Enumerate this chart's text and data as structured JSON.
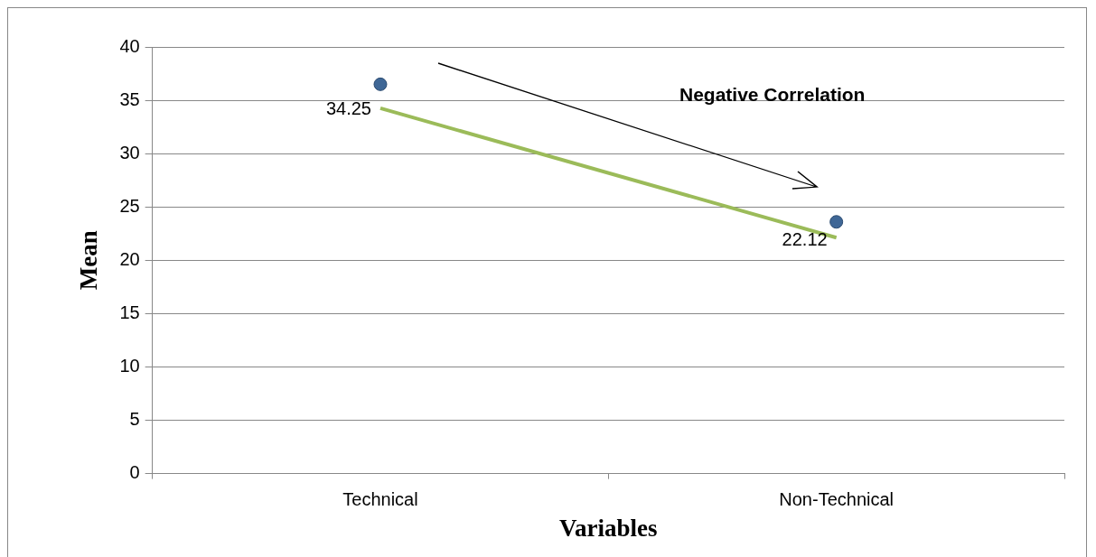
{
  "chart_data": {
    "type": "scatter",
    "categories": [
      "Technical",
      "Non-Technical"
    ],
    "xlabel": "Variables",
    "ylabel": "Mean",
    "ylim": [
      0,
      40
    ],
    "yticks": [
      0,
      5,
      10,
      15,
      20,
      25,
      30,
      35,
      40
    ],
    "grid": "y",
    "legend": false,
    "annotations": [
      "Negative Correlation"
    ],
    "series": [
      {
        "color": "#3f6796",
        "marker": "circle",
        "values": [
          36.5,
          23.6
        ]
      },
      {
        "type": "line",
        "color": "#9bbb59",
        "marker": "none",
        "line_style": "solid",
        "values": [
          34.25,
          22.12
        ],
        "value_labels": [
          "34.25",
          "22.12"
        ]
      }
    ]
  }
}
